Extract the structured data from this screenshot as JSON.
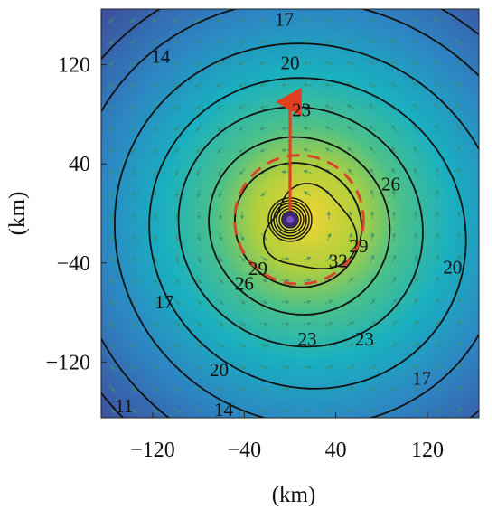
{
  "chart_data": {
    "type": "heatmap",
    "title": "",
    "xlabel": "(km)",
    "ylabel": "(km)",
    "xlim": [
      -165,
      165
    ],
    "ylim": [
      -165,
      165
    ],
    "x_ticks": [
      -120,
      -40,
      40,
      120
    ],
    "y_ticks": [
      120,
      40,
      -40,
      -120
    ],
    "x_tick_labels": [
      "−120",
      "−40",
      "40",
      "120"
    ],
    "y_tick_labels": [
      "120",
      "40",
      "−40",
      "−120"
    ],
    "colormap": [
      "#3e4f9e",
      "#2d86c3",
      "#19b0c0",
      "#4cc189",
      "#b0cf3c",
      "#f2d431"
    ],
    "contour_levels": [
      11,
      14,
      17,
      20,
      23,
      26,
      29,
      32
    ],
    "contour_labels": [
      {
        "text": "17",
        "x": -5,
        "y": 155
      },
      {
        "text": "20",
        "x": 0,
        "y": 120
      },
      {
        "text": "23",
        "x": 10,
        "y": 82
      },
      {
        "text": "26",
        "x": 88,
        "y": 22
      },
      {
        "text": "29",
        "x": 60,
        "y": -28
      },
      {
        "text": "32",
        "x": 42,
        "y": -40
      },
      {
        "text": "29",
        "x": -28,
        "y": -46
      },
      {
        "text": "26",
        "x": -40,
        "y": -58
      },
      {
        "text": "23",
        "x": 15,
        "y": -103
      },
      {
        "text": "23",
        "x": 65,
        "y": -103
      },
      {
        "text": "20",
        "x": -62,
        "y": -128
      },
      {
        "text": "20",
        "x": 142,
        "y": -45
      },
      {
        "text": "17",
        "x": 115,
        "y": -135
      },
      {
        "text": "17",
        "x": -110,
        "y": -73
      },
      {
        "text": "14",
        "x": -113,
        "y": 125
      },
      {
        "text": "14",
        "x": -58,
        "y": -160
      },
      {
        "text": "11",
        "x": -145,
        "y": -157
      }
    ],
    "storm_center": {
      "x": 0,
      "y": -5
    },
    "motion_vector": {
      "x": 0,
      "y": 95
    },
    "rmw_ring_radius_km": 45,
    "arrow_color": "#e0401f",
    "contour_color": "#111111",
    "wind_vector_color": "#3c8e74"
  }
}
